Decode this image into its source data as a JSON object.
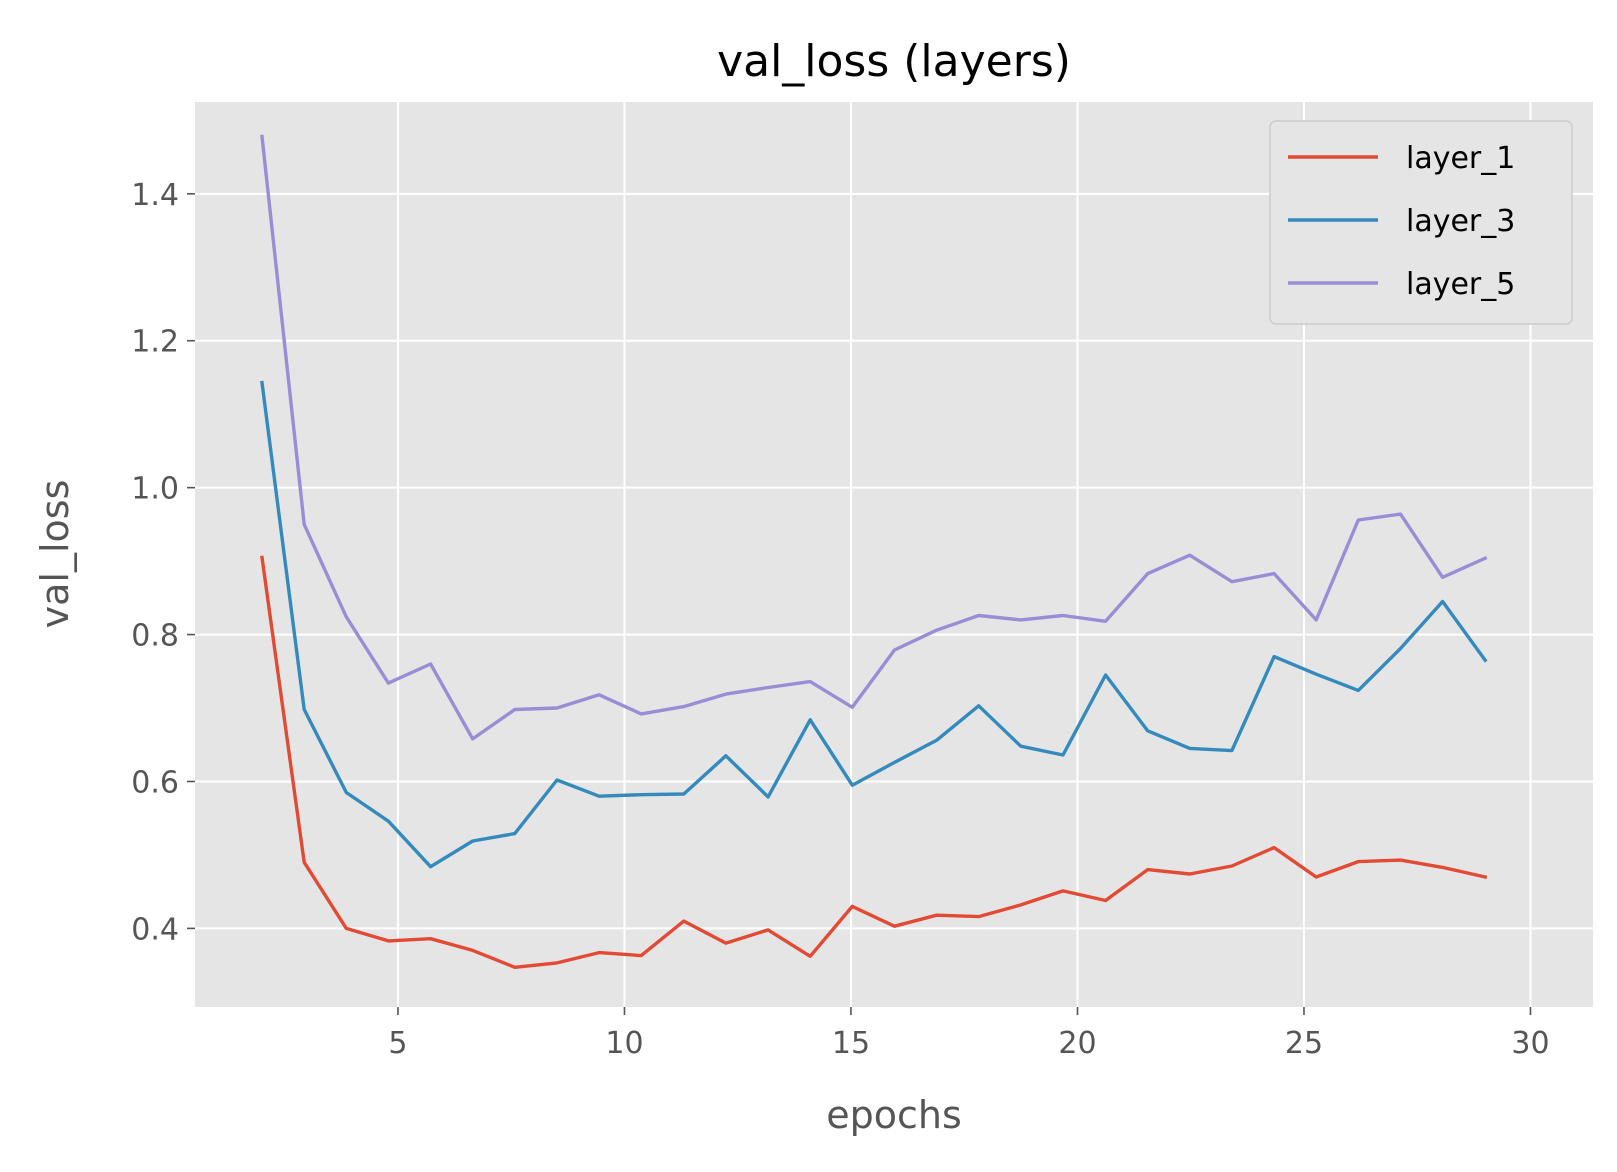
{
  "chart_data": {
    "type": "line",
    "title": "val_loss (layers)",
    "xlabel": "epochs",
    "ylabel": "val_loss",
    "xlim": [
      0.52,
      31.38
    ],
    "ylim": [
      0.293,
      1.525
    ],
    "xticks": [
      5,
      10,
      15,
      20,
      25,
      30
    ],
    "yticks": [
      0.4,
      0.6,
      0.8,
      1.0,
      1.2,
      1.4
    ],
    "xtick_labels": [
      "5",
      "10",
      "15",
      "20",
      "25",
      "30"
    ],
    "ytick_labels": [
      "0.4",
      "0.6",
      "0.8",
      "1.0",
      "1.2",
      "1.4"
    ],
    "grid": true,
    "legend_position": "top-right",
    "x": [
      2,
      2.93,
      3.86,
      4.79,
      5.72,
      6.65,
      7.58,
      8.51,
      9.44,
      10.37,
      11.31,
      12.24,
      13.17,
      14.1,
      15.03,
      15.96,
      16.89,
      17.82,
      18.75,
      19.68,
      20.62,
      21.55,
      22.48,
      23.41,
      24.34,
      25.27,
      26.2,
      27.13,
      28.06,
      29
    ],
    "series": [
      {
        "name": "layer_1",
        "color": "#E24A33",
        "values": [
          0.905,
          0.49,
          0.4,
          0.383,
          0.386,
          0.37,
          0.347,
          0.353,
          0.367,
          0.363,
          0.41,
          0.38,
          0.398,
          0.362,
          0.43,
          0.403,
          0.418,
          0.416,
          0.432,
          0.451,
          0.438,
          0.48,
          0.474,
          0.485,
          0.51,
          0.47,
          0.491,
          0.493,
          0.483,
          0.47
        ]
      },
      {
        "name": "layer_3",
        "color": "#348ABD",
        "values": [
          1.143,
          0.698,
          0.585,
          0.546,
          0.484,
          0.519,
          0.529,
          0.602,
          0.58,
          0.582,
          0.583,
          0.635,
          0.579,
          0.684,
          0.595,
          0.626,
          0.656,
          0.703,
          0.648,
          0.636,
          0.745,
          0.669,
          0.645,
          0.642,
          0.77,
          0.746,
          0.724,
          0.781,
          0.845,
          0.765
        ]
      },
      {
        "name": "layer_5",
        "color": "#988ED5",
        "values": [
          1.478,
          0.95,
          0.824,
          0.734,
          0.76,
          0.658,
          0.698,
          0.7,
          0.718,
          0.692,
          0.702,
          0.719,
          0.728,
          0.736,
          0.701,
          0.779,
          0.806,
          0.826,
          0.82,
          0.826,
          0.818,
          0.883,
          0.908,
          0.872,
          0.883,
          0.82,
          0.956,
          0.964,
          0.878,
          0.904
        ]
      }
    ]
  }
}
